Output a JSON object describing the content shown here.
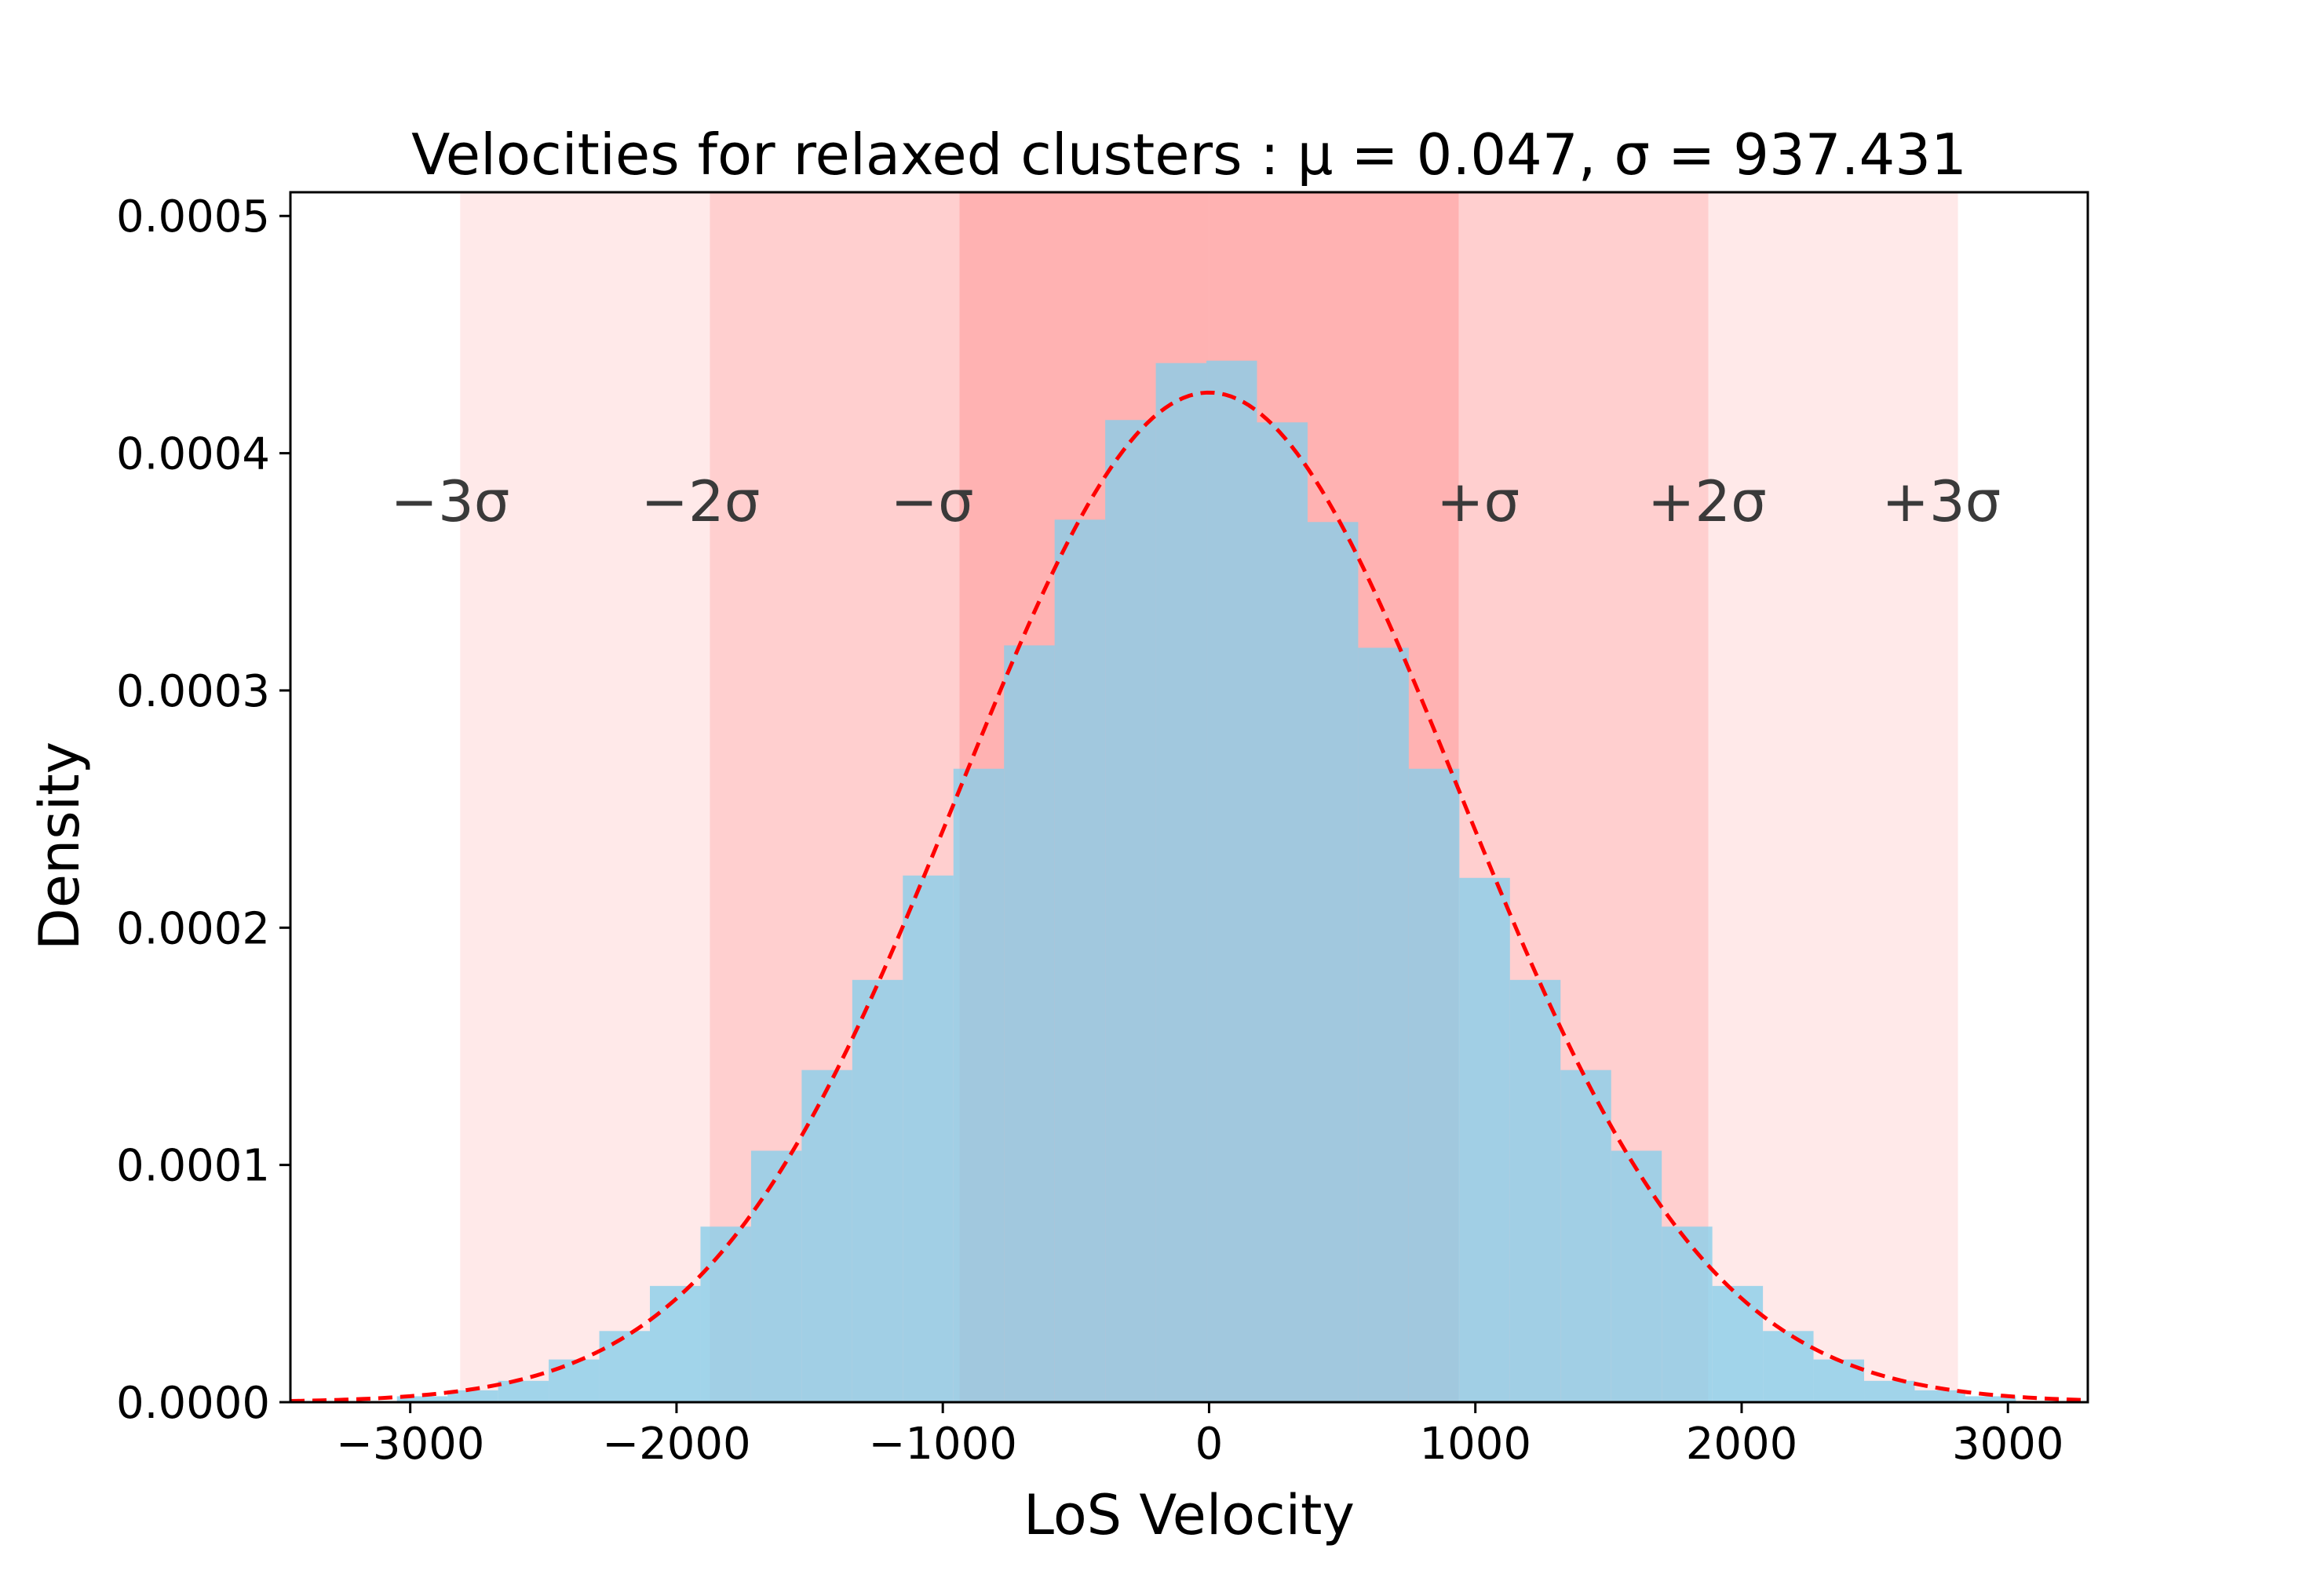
{
  "chart_data": {
    "type": "bar",
    "title": "Velocities for relaxed clusters$:\\ \\mu=0.047,\\ \\sigma=937.431$",
    "title_display": "Velocities for relaxed clusters :  μ = 0.047,  σ = 937.431",
    "xlabel": "LoS Velocity",
    "ylabel": "Density",
    "xlim": [
      -3450,
      3300
    ],
    "ylim": [
      0,
      0.00051
    ],
    "x_ticks": [
      -3000,
      -2000,
      -1000,
      0,
      1000,
      2000,
      3000
    ],
    "x_tick_labels": [
      "−3000",
      "−2000",
      "−1000",
      "0",
      "1000",
      "2000",
      "3000"
    ],
    "y_ticks": [
      0,
      0.0001,
      0.0002,
      0.0003,
      0.0004,
      0.0005
    ],
    "y_tick_labels": [
      "0.0000",
      "0.0001",
      "0.0002",
      "0.0003",
      "0.0004",
      "0.0005"
    ],
    "grid": false,
    "mu": 0.047,
    "sigma": 937.431,
    "histogram": {
      "color": "#87CEEB",
      "bins": [
        {
          "x0": -3050,
          "x1": -2860,
          "value": 2.5e-06
        },
        {
          "x0": -2860,
          "x1": -2670,
          "value": 5e-06
        },
        {
          "x0": -2670,
          "x1": -2480,
          "value": 9e-06
        },
        {
          "x0": -2480,
          "x1": -2290,
          "value": 1.8e-05
        },
        {
          "x0": -2290,
          "x1": -2100,
          "value": 3e-05
        },
        {
          "x0": -2100,
          "x1": -1910,
          "value": 4.9e-05
        },
        {
          "x0": -1910,
          "x1": -1720,
          "value": 7.4e-05
        },
        {
          "x0": -1720,
          "x1": -1530,
          "value": 0.000106
        },
        {
          "x0": -1530,
          "x1": -1340,
          "value": 0.00014
        },
        {
          "x0": -1340,
          "x1": -1150,
          "value": 0.000178
        },
        {
          "x0": -1150,
          "x1": -960,
          "value": 0.000222
        },
        {
          "x0": -960,
          "x1": -770,
          "value": 0.000267
        },
        {
          "x0": -770,
          "x1": -580,
          "value": 0.000319
        },
        {
          "x0": -580,
          "x1": -390,
          "value": 0.000372
        },
        {
          "x0": -390,
          "x1": -200,
          "value": 0.000414
        },
        {
          "x0": -200,
          "x1": -10,
          "value": 0.000438
        },
        {
          "x0": -10,
          "x1": 180,
          "value": 0.000439
        },
        {
          "x0": 180,
          "x1": 370,
          "value": 0.000413
        },
        {
          "x0": 370,
          "x1": 560,
          "value": 0.000371
        },
        {
          "x0": 560,
          "x1": 750,
          "value": 0.000318
        },
        {
          "x0": 750,
          "x1": 940,
          "value": 0.000267
        },
        {
          "x0": 940,
          "x1": 1130,
          "value": 0.000221
        },
        {
          "x0": 1130,
          "x1": 1320,
          "value": 0.000178
        },
        {
          "x0": 1320,
          "x1": 1510,
          "value": 0.00014
        },
        {
          "x0": 1510,
          "x1": 1700,
          "value": 0.000106
        },
        {
          "x0": 1700,
          "x1": 1890,
          "value": 7.4e-05
        },
        {
          "x0": 1890,
          "x1": 2080,
          "value": 4.9e-05
        },
        {
          "x0": 2080,
          "x1": 2270,
          "value": 3e-05
        },
        {
          "x0": 2270,
          "x1": 2460,
          "value": 1.8e-05
        },
        {
          "x0": 2460,
          "x1": 2650,
          "value": 9e-06
        },
        {
          "x0": 2650,
          "x1": 2840,
          "value": 5e-06
        },
        {
          "x0": 2840,
          "x1": 3030,
          "value": 2.5e-06
        }
      ]
    },
    "fit_curve": {
      "type": "line",
      "style": "dashed",
      "color": "#ff0000",
      "distribution": "normal",
      "x_start": -3450,
      "x_end": 3300
    },
    "sigma_bands": [
      {
        "label": "−σ",
        "x0": -937.431,
        "x1": 0,
        "color": "#ff7f7f",
        "opacity": 0.6
      },
      {
        "label": "+σ",
        "x0": 0,
        "x1": 937.431,
        "color": "#ff7f7f",
        "opacity": 0.6
      },
      {
        "label": "−2σ",
        "x0": -1874.862,
        "x1": -937.431,
        "color": "#ffa0a0",
        "opacity": 0.5
      },
      {
        "label": "+2σ",
        "x0": 937.431,
        "x1": 1874.862,
        "color": "#ffa0a0",
        "opacity": 0.5
      },
      {
        "label": "−3σ",
        "x0": -2812.293,
        "x1": -1874.862,
        "color": "#ffc0c0",
        "opacity": 0.35
      },
      {
        "label": "+3σ",
        "x0": 1874.862,
        "x1": 2812.293,
        "color": "#ffc0c0",
        "opacity": 0.35
      }
    ],
    "band_label_y": 0.00038,
    "band_label_x": {
      "−3σ": -2850,
      "−2σ": -1910,
      "−σ": -1040,
      "+σ": 1010,
      "+2σ": 1870,
      "+3σ": 2750
    }
  }
}
